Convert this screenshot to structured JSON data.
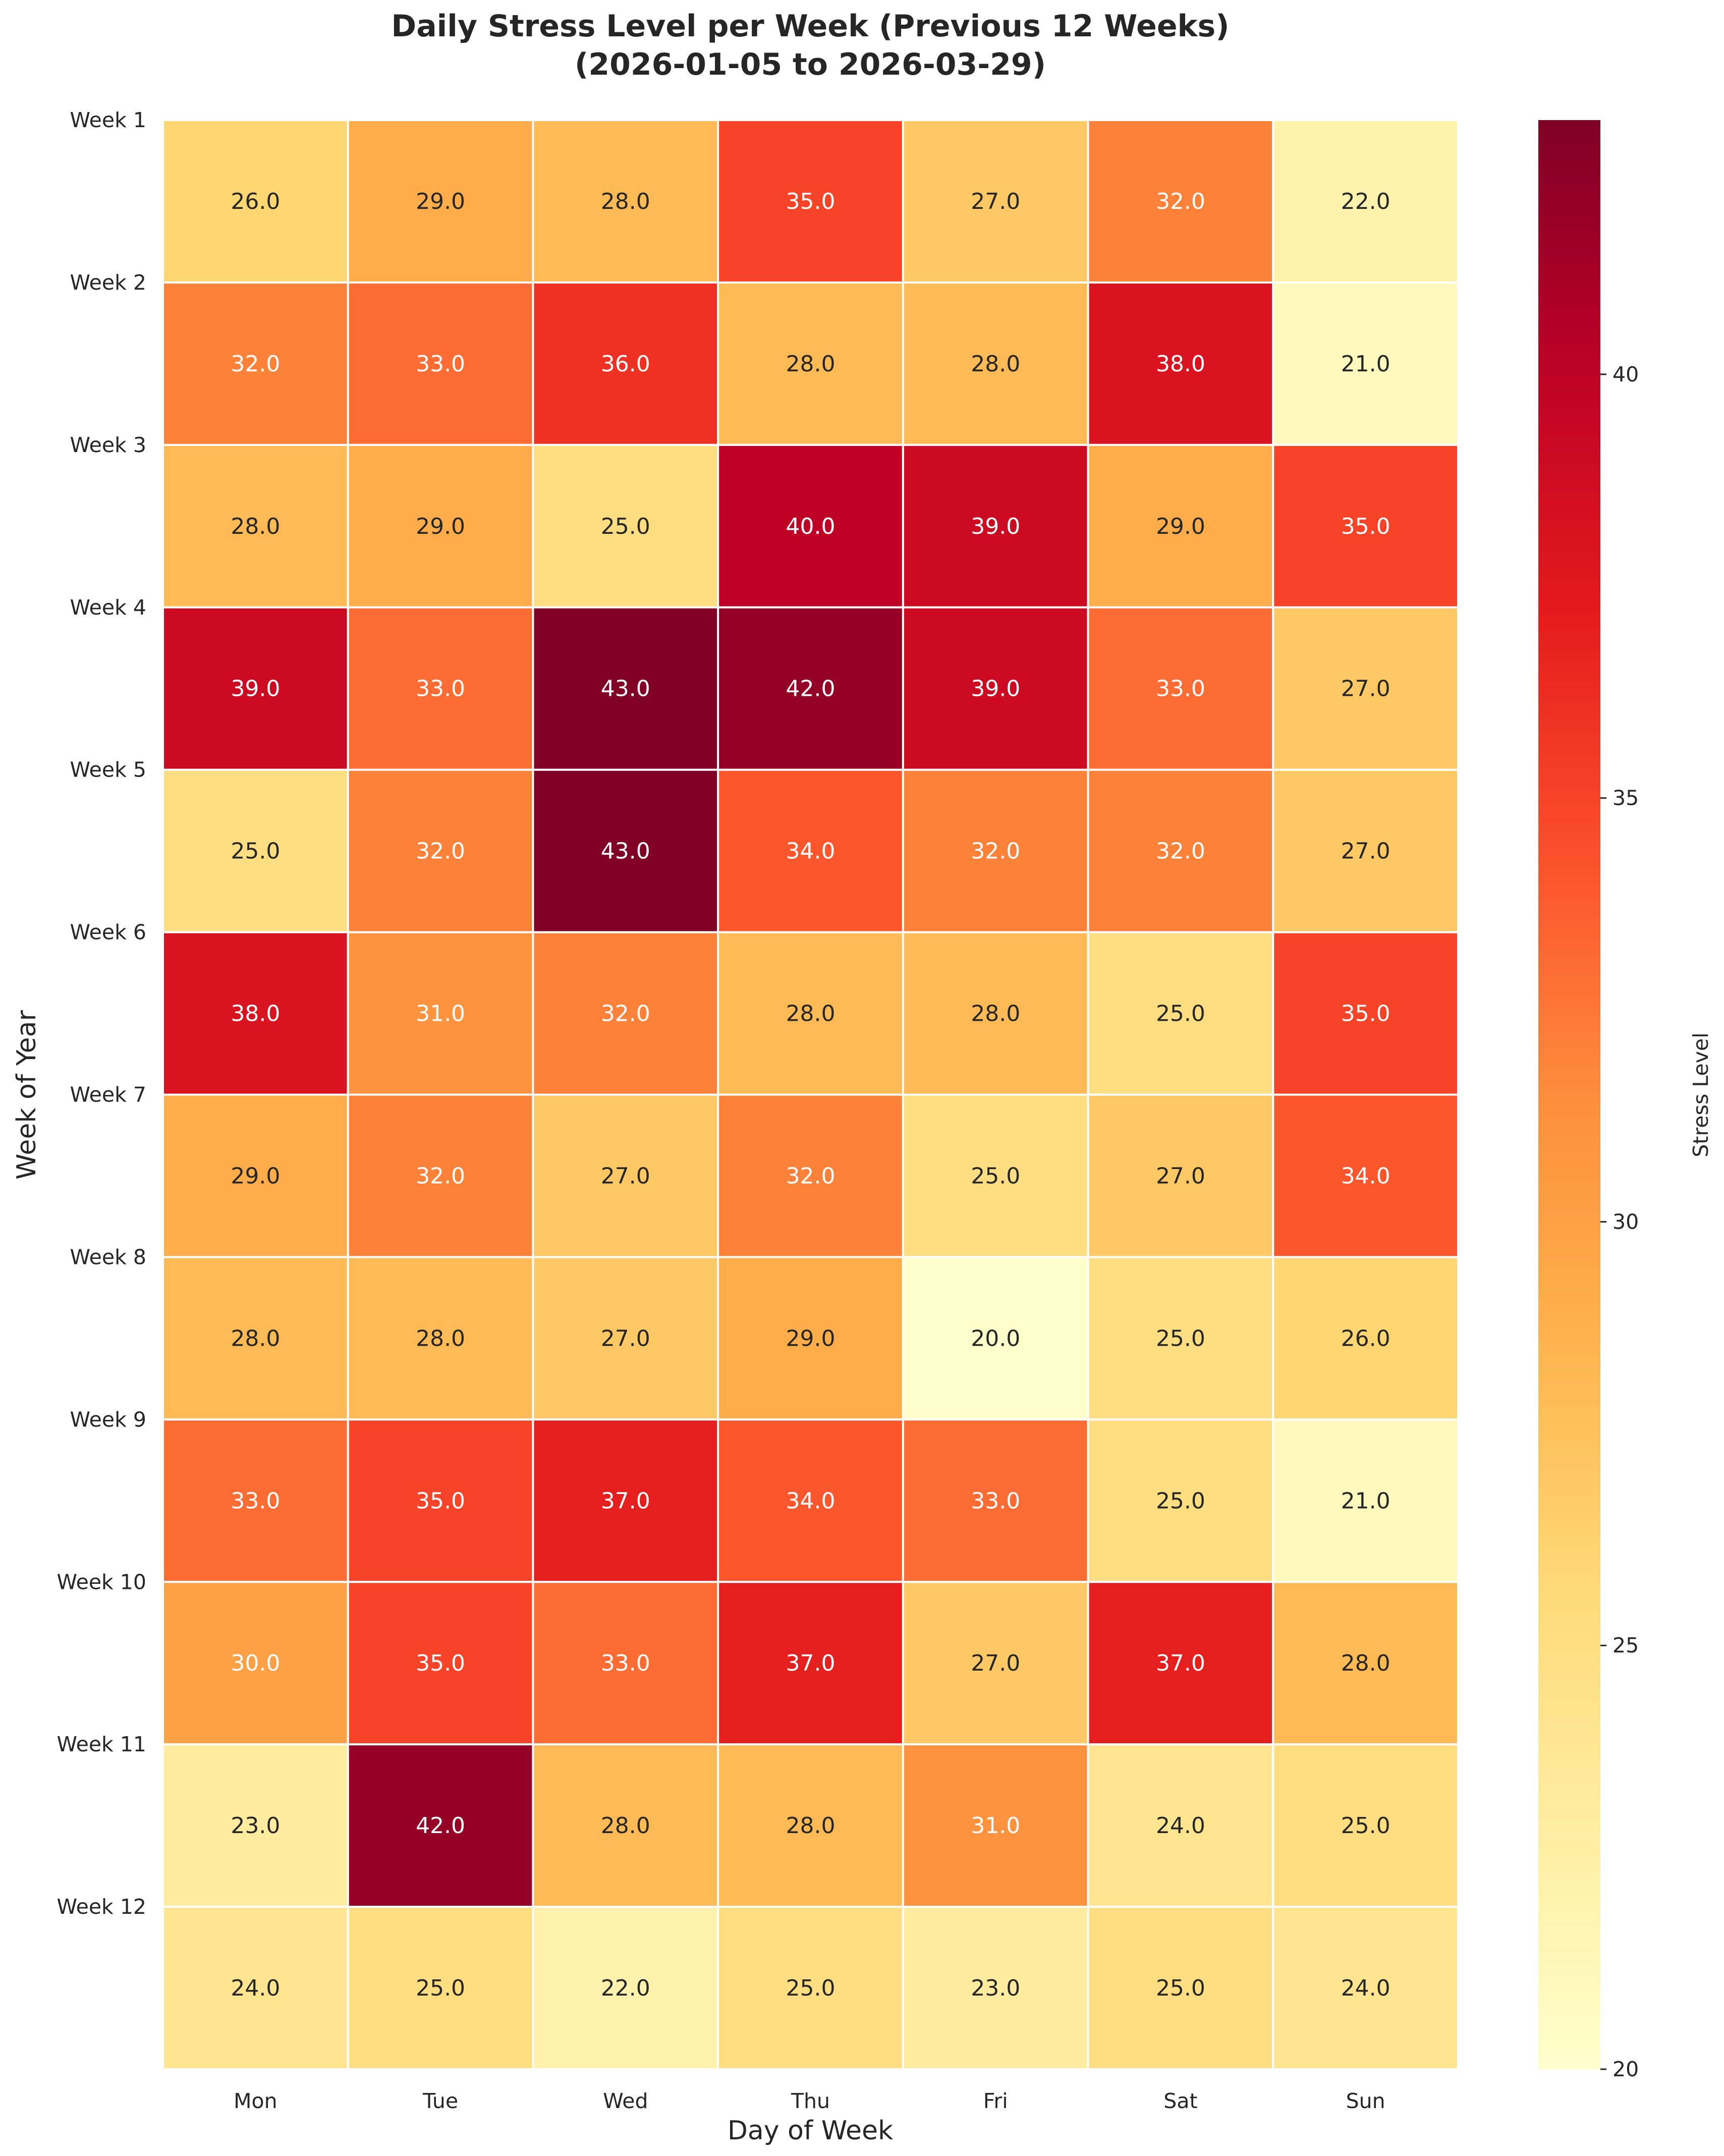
{
  "chart_data": {
    "type": "heatmap",
    "title": "Daily Stress Level per Week (Previous 12 Weeks)",
    "subtitle": "(2026-01-05 to 2026-03-29)",
    "xlabel": "Day of Week",
    "ylabel": "Week of Year",
    "colorbar_label": "Stress Level",
    "colormap": "YlOrRd",
    "value_range": [
      20,
      43
    ],
    "colorbar_ticks": [
      20,
      25,
      30,
      35,
      40
    ],
    "x_categories": [
      "Mon",
      "Tue",
      "Wed",
      "Thu",
      "Fri",
      "Sat",
      "Sun"
    ],
    "y_categories": [
      "Week 1",
      "Week 2",
      "Week 3",
      "Week 4",
      "Week 5",
      "Week 6",
      "Week 7",
      "Week 8",
      "Week 9",
      "Week 10",
      "Week 11",
      "Week 12"
    ],
    "values": [
      [
        26,
        29,
        28,
        35,
        27,
        32,
        22
      ],
      [
        32,
        33,
        36,
        28,
        28,
        38,
        21
      ],
      [
        28,
        29,
        25,
        40,
        39,
        29,
        35
      ],
      [
        39,
        33,
        43,
        42,
        39,
        33,
        27
      ],
      [
        25,
        32,
        43,
        34,
        32,
        32,
        27
      ],
      [
        38,
        31,
        32,
        28,
        28,
        25,
        35
      ],
      [
        29,
        32,
        27,
        32,
        25,
        27,
        34
      ],
      [
        28,
        28,
        27,
        29,
        20,
        25,
        26
      ],
      [
        33,
        35,
        37,
        34,
        33,
        25,
        21
      ],
      [
        30,
        35,
        33,
        37,
        27,
        37,
        28
      ],
      [
        23,
        42,
        28,
        28,
        31,
        24,
        25
      ],
      [
        24,
        25,
        22,
        25,
        23,
        25,
        24
      ]
    ],
    "annotation_format": "0.0",
    "grid": false
  }
}
